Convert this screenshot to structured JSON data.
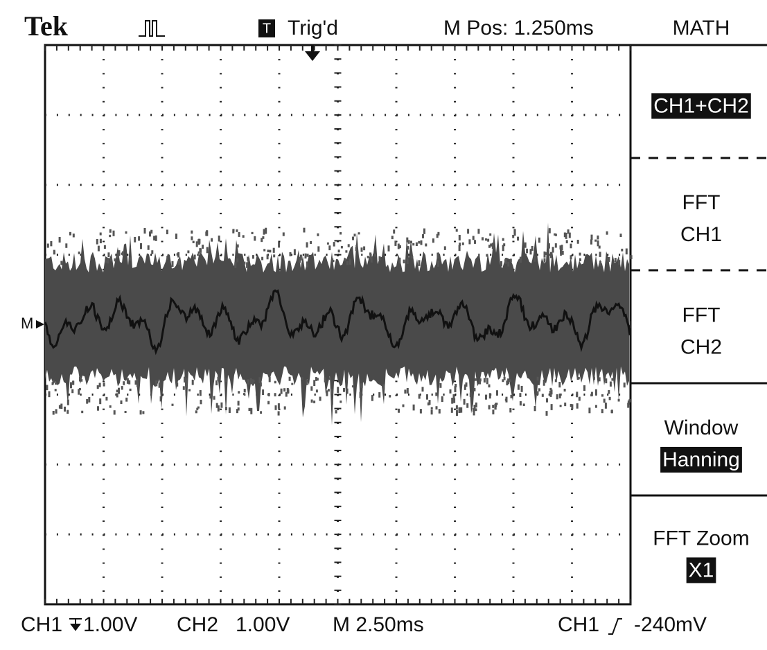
{
  "header": {
    "brand": "Tek",
    "trigger_icon": "T",
    "trigger_status": "Trig'd",
    "position": "M Pos: 1.250ms",
    "menu_title": "MATH"
  },
  "marker": "M",
  "menu": [
    {
      "value": "CH1+CH2"
    },
    {
      "lines": [
        "FFT",
        "CH1"
      ]
    },
    {
      "lines": [
        "FFT",
        "CH2"
      ]
    },
    {
      "lines": [
        "Window"
      ],
      "value": "Hanning"
    },
    {
      "lines": [
        "FFT Zoom"
      ],
      "value": "X1"
    }
  ],
  "status": {
    "ch1": "CH1",
    "ch1_scale": "1.00V",
    "ch2": "CH2",
    "ch2_scale": "1.00V",
    "timebase": "M 2.50ms",
    "trigger_source": "CH1",
    "trigger_level": "-240mV"
  }
}
